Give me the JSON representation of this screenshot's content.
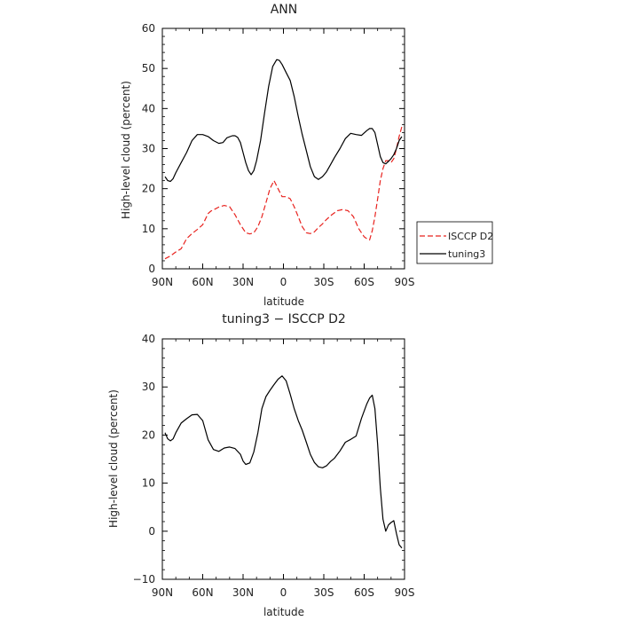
{
  "chart_data": [
    {
      "type": "line",
      "title": "ANN",
      "xlabel": "latitude",
      "ylabel": "High-level cloud (percent)",
      "xlim": [
        90,
        -90
      ],
      "ylim": [
        0,
        60
      ],
      "x_ticks": [
        90,
        60,
        30,
        0,
        -30,
        -60,
        -90
      ],
      "x_tick_labels": [
        "90N",
        "60N",
        "30N",
        "0",
        "30S",
        "60S",
        "90S"
      ],
      "y_ticks": [
        0,
        10,
        20,
        30,
        40,
        50,
        60
      ],
      "y_tick_labels": [
        "0",
        "10",
        "20",
        "30",
        "40",
        "50",
        "60"
      ],
      "legend_position": "right",
      "series": [
        {
          "name": "ISCCP D2",
          "color": "#e8231f",
          "dash": "dashed",
          "x": [
            88,
            84,
            80,
            76,
            72,
            68,
            64,
            60,
            56,
            54,
            52,
            48,
            44,
            40,
            36,
            32,
            28,
            25,
            22,
            19,
            16,
            13,
            10,
            7,
            4,
            1,
            -2,
            -5,
            -8,
            -11,
            -14,
            -17,
            -20,
            -23,
            -26,
            -29,
            -32,
            -36,
            -40,
            -44,
            -48,
            -52,
            -56,
            -58,
            -60,
            -62,
            -64,
            -66,
            -68,
            -70,
            -72,
            -74,
            -76,
            -78,
            -80,
            -82,
            -84,
            -86,
            -88
          ],
          "y": [
            2.5,
            3.2,
            4.2,
            5,
            7.5,
            8.8,
            9.8,
            11,
            13.8,
            14.4,
            14.7,
            15.4,
            15.8,
            15.5,
            13.5,
            11,
            9,
            8.7,
            9,
            10.5,
            13,
            16.5,
            20,
            22,
            20,
            18,
            18,
            17.5,
            15.5,
            13,
            10.5,
            9,
            8.8,
            9.2,
            10.3,
            11.2,
            12.3,
            13.5,
            14.5,
            14.8,
            14.5,
            13,
            10,
            9,
            8,
            7.5,
            7.2,
            9.5,
            13,
            17.5,
            22,
            25,
            27,
            27,
            26.5,
            27.5,
            30,
            33,
            35.5
          ]
        },
        {
          "name": "tuning3",
          "color": "#000000",
          "dash": "solid",
          "x": [
            88,
            86,
            84,
            82,
            80,
            76,
            72,
            68,
            64,
            60,
            56,
            52,
            48,
            45,
            42,
            38,
            36,
            34,
            32,
            30,
            28,
            26,
            24,
            22,
            20,
            17,
            14,
            11,
            8,
            5,
            3,
            1,
            -2,
            -5,
            -8,
            -11,
            -14,
            -17,
            -20,
            -23,
            -26,
            -29,
            -32,
            -35,
            -38,
            -42,
            -46,
            -50,
            -54,
            -58,
            -62,
            -64,
            -66,
            -68,
            -70,
            -72,
            -74,
            -76,
            -78,
            -80,
            -82,
            -84,
            -86,
            -88
          ],
          "y": [
            23,
            22,
            21.8,
            22.5,
            24,
            26.5,
            29,
            32,
            33.5,
            33.5,
            33,
            32,
            31.3,
            31.5,
            32.7,
            33.2,
            33.2,
            32.8,
            31.5,
            29,
            26.5,
            24.5,
            23.5,
            24.5,
            27,
            32,
            39,
            45.5,
            50.5,
            52.2,
            52,
            51,
            49,
            47,
            43,
            38,
            33.5,
            29.5,
            25.5,
            23,
            22.3,
            23,
            24.2,
            26,
            27.8,
            30,
            32.5,
            33.8,
            33.5,
            33.3,
            34.5,
            35,
            35,
            34,
            31,
            28,
            26.5,
            26.2,
            26.8,
            27.5,
            28.5,
            30,
            32,
            33
          ]
        }
      ]
    },
    {
      "type": "line",
      "title": "tuning3 − ISCCP D2",
      "xlabel": "latitude",
      "ylabel": "High-level cloud (percent)",
      "xlim": [
        90,
        -90
      ],
      "ylim": [
        -10,
        40
      ],
      "x_ticks": [
        90,
        60,
        30,
        0,
        -30,
        -60,
        -90
      ],
      "x_tick_labels": [
        "90N",
        "60N",
        "30N",
        "0",
        "30S",
        "60S",
        "90S"
      ],
      "y_ticks": [
        -10,
        0,
        10,
        20,
        30,
        40
      ],
      "y_tick_labels": [
        "−10",
        "0",
        "10",
        "20",
        "30",
        "40"
      ],
      "series": [
        {
          "color": "#000000",
          "dash": "solid",
          "x": [
            88,
            86,
            84,
            82,
            80,
            76,
            72,
            68,
            64,
            60,
            56,
            52,
            48,
            44,
            40,
            36,
            32,
            30,
            28,
            25,
            22,
            19,
            16,
            13,
            10,
            7,
            4,
            1,
            -2,
            -5,
            -8,
            -11,
            -14,
            -17,
            -20,
            -23,
            -26,
            -29,
            -32,
            -35,
            -38,
            -42,
            -46,
            -50,
            -54,
            -58,
            -62,
            -64,
            -66,
            -68,
            -70,
            -72,
            -74,
            -76,
            -78,
            -80,
            -82,
            -84,
            -86,
            -88
          ],
          "y": [
            20.5,
            19.2,
            18.8,
            19.2,
            20.5,
            22.5,
            23.4,
            24.2,
            24.3,
            23,
            19,
            17,
            16.6,
            17.3,
            17.5,
            17.2,
            16,
            14.6,
            13.9,
            14.2,
            16.5,
            20.5,
            25.5,
            28,
            29.3,
            30.5,
            31.6,
            32.3,
            31.3,
            28.5,
            25.5,
            23,
            21,
            18.5,
            16,
            14.3,
            13.4,
            13.2,
            13.6,
            14.5,
            15.2,
            16.7,
            18.5,
            19.1,
            19.8,
            23.5,
            26.5,
            27.7,
            28.3,
            25.5,
            18,
            9,
            2.5,
            0,
            1.3,
            1.8,
            2.2,
            -0.5,
            -2.8,
            -3.5
          ]
        }
      ]
    }
  ]
}
